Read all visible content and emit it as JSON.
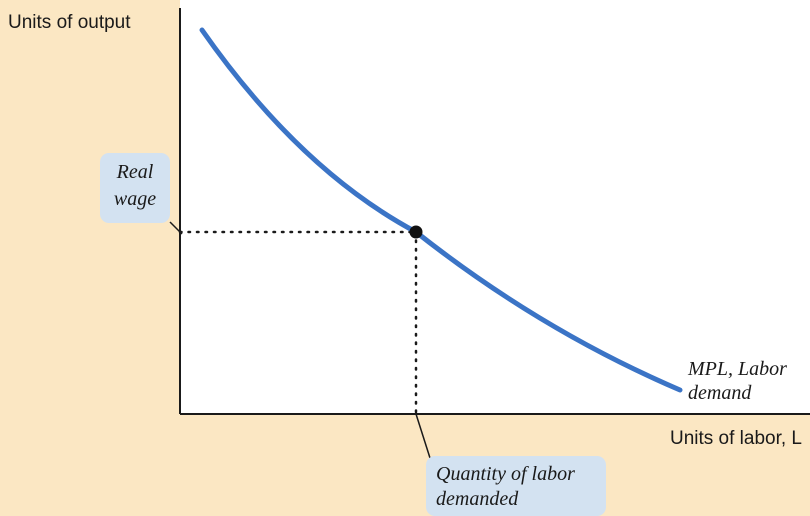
{
  "chart_data": {
    "type": "line",
    "ylabel": "Units of output",
    "xlabel": "Units of labor, L",
    "series": [
      {
        "name": "MPL, Labor demand",
        "color": "#3b74c6",
        "shape": "downward-sloping convex curve"
      }
    ],
    "equilibrium": {
      "y_label": "Real wage",
      "x_label": "Quantity of labor demanded"
    },
    "curve_label": [
      "MPL, Labor",
      "demand"
    ],
    "real_wage_label": [
      "Real",
      "wage"
    ],
    "quantity_label": [
      "Quantity of labor",
      "demanded"
    ],
    "grid": false,
    "legend": "none"
  }
}
